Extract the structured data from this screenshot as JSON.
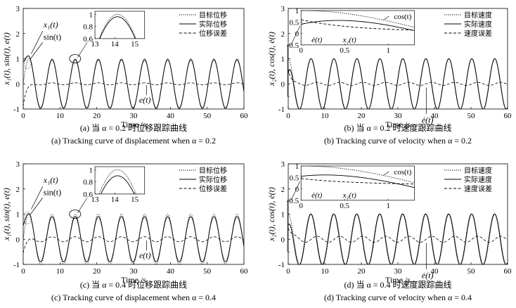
{
  "legend_labels": {
    "displacement": [
      "目标位移",
      "实际位移",
      "位移误差"
    ],
    "velocity": [
      "目标速度",
      "实际速度",
      "速度误差"
    ]
  },
  "chart_data": [
    {
      "id": "a",
      "type": "line",
      "caption_cn": "(a) 当 α = 0.2 时位移跟踪曲线",
      "caption_en": "(a) Tracking curve of displacement when  α = 0.2",
      "xlabel": "Time /s",
      "ylabel": "x₁(t), sin(t), e(t)",
      "xlim": [
        0,
        60
      ],
      "ylim": [
        -1,
        3
      ],
      "xticks": [
        0,
        10,
        20,
        30,
        40,
        50,
        60
      ],
      "yticks": [
        -1,
        0,
        1,
        2,
        3
      ],
      "legend_position": "top-right",
      "series": [
        {
          "name": "目标位移",
          "style": "dotted",
          "formula": "sin(t)"
        },
        {
          "name": "实际位移",
          "style": "solid",
          "formula": "sin(t) - e(t)"
        },
        {
          "name": "位移误差",
          "style": "dashed",
          "formula": "e(t)",
          "initial": -0.9,
          "decay": 1.2,
          "steady_amplitude": 0.04
        }
      ],
      "annotations": [
        "x₁(t)",
        "sin(t)",
        "e(t)"
      ],
      "inset": {
        "xlim": [
          13,
          15.5
        ],
        "ylim": [
          0.6,
          1.05
        ],
        "xticks": [
          13,
          14,
          15
        ],
        "yticks": [
          0.6,
          0.8,
          1
        ]
      }
    },
    {
      "id": "b",
      "type": "line",
      "caption_cn": "(b) 当 α = 0.2 时速度跟踪曲线",
      "caption_en": "(b) Tracking curve of velocity when  α = 0.2",
      "xlabel": "Time /s",
      "ylabel": "x₂(t), cos(t), ė(t)",
      "xlim": [
        0,
        60
      ],
      "ylim": [
        -1,
        3
      ],
      "xticks": [
        0,
        10,
        20,
        30,
        40,
        50,
        60
      ],
      "yticks": [
        -1,
        0,
        1,
        2,
        3
      ],
      "legend_position": "top-right",
      "series": [
        {
          "name": "目标速度",
          "style": "dotted",
          "formula": "cos(t)"
        },
        {
          "name": "实际速度",
          "style": "solid",
          "formula": "cos(t) - e(t)"
        },
        {
          "name": "速度误差",
          "style": "dashed",
          "formula": "ė(t)",
          "initial": 0.6,
          "decay": 1.5,
          "steady_amplitude": 0.06
        }
      ],
      "annotations": [
        "ė(t)"
      ],
      "inset": {
        "xlim": [
          0,
          1.3
        ],
        "ylim": [
          -0.5,
          1.0
        ],
        "xticks": [
          0,
          0.5,
          1
        ],
        "yticks": [
          -0.5,
          0,
          0.5,
          1
        ],
        "labels": [
          "cos(t)",
          "ė(t)",
          "x₂(t)"
        ]
      }
    },
    {
      "id": "c",
      "type": "line",
      "caption_cn": "(c) 当 α = 0.4 时位移跟踪曲线",
      "caption_en": "(c) Tracking curve of displacement when  α = 0.4",
      "xlabel": "Time /s",
      "ylabel": "x₁(t), sin(t), e(t)",
      "xlim": [
        0,
        60
      ],
      "ylim": [
        -1,
        3
      ],
      "xticks": [
        0,
        10,
        20,
        30,
        40,
        50,
        60
      ],
      "yticks": [
        -1,
        0,
        1,
        2,
        3
      ],
      "legend_position": "top-right",
      "series": [
        {
          "name": "目标位移",
          "style": "dotted",
          "formula": "sin(t)"
        },
        {
          "name": "实际位移",
          "style": "solid",
          "formula": "sin(t) - e(t)"
        },
        {
          "name": "位移误差",
          "style": "dashed",
          "formula": "e(t)",
          "initial": -0.55,
          "decay": 1.0,
          "steady_amplitude": 0.1
        }
      ],
      "annotations": [
        "x₁(t)",
        "sin(t)",
        "e(t)"
      ],
      "inset": {
        "xlim": [
          13,
          15.5
        ],
        "ylim": [
          0.6,
          1.05
        ],
        "xticks": [
          13,
          14,
          15
        ],
        "yticks": [
          0.6,
          0.8,
          1
        ]
      }
    },
    {
      "id": "d",
      "type": "line",
      "caption_cn": "(d) 当 α = 0.4 时速度跟踪曲线",
      "caption_en": "(d) Tracking curve of velocity when  α = 0.4",
      "xlabel": "Time /s",
      "ylabel": "x₂(t), cos(t), ė(t)",
      "xlim": [
        0,
        60
      ],
      "ylim": [
        -1,
        3
      ],
      "xticks": [
        0,
        10,
        20,
        30,
        40,
        50,
        60
      ],
      "yticks": [
        -1,
        0,
        1,
        2,
        3
      ],
      "legend_position": "top-right",
      "series": [
        {
          "name": "目标速度",
          "style": "dotted",
          "formula": "cos(t)"
        },
        {
          "name": "实际速度",
          "style": "solid",
          "formula": "cos(t) - e(t)"
        },
        {
          "name": "速度误差",
          "style": "dashed",
          "formula": "ė(t)",
          "initial": 0.45,
          "decay": 1.2,
          "steady_amplitude": 0.12
        }
      ],
      "annotations": [
        "ė(t)"
      ],
      "inset": {
        "xlim": [
          0,
          1.3
        ],
        "ylim": [
          -0.5,
          1.0
        ],
        "xticks": [
          0,
          0.5,
          1
        ],
        "yticks": [
          -0.5,
          0,
          0.5,
          1
        ],
        "labels": [
          "cos(t)",
          "ė(t)",
          "x₂(t)"
        ]
      }
    }
  ]
}
